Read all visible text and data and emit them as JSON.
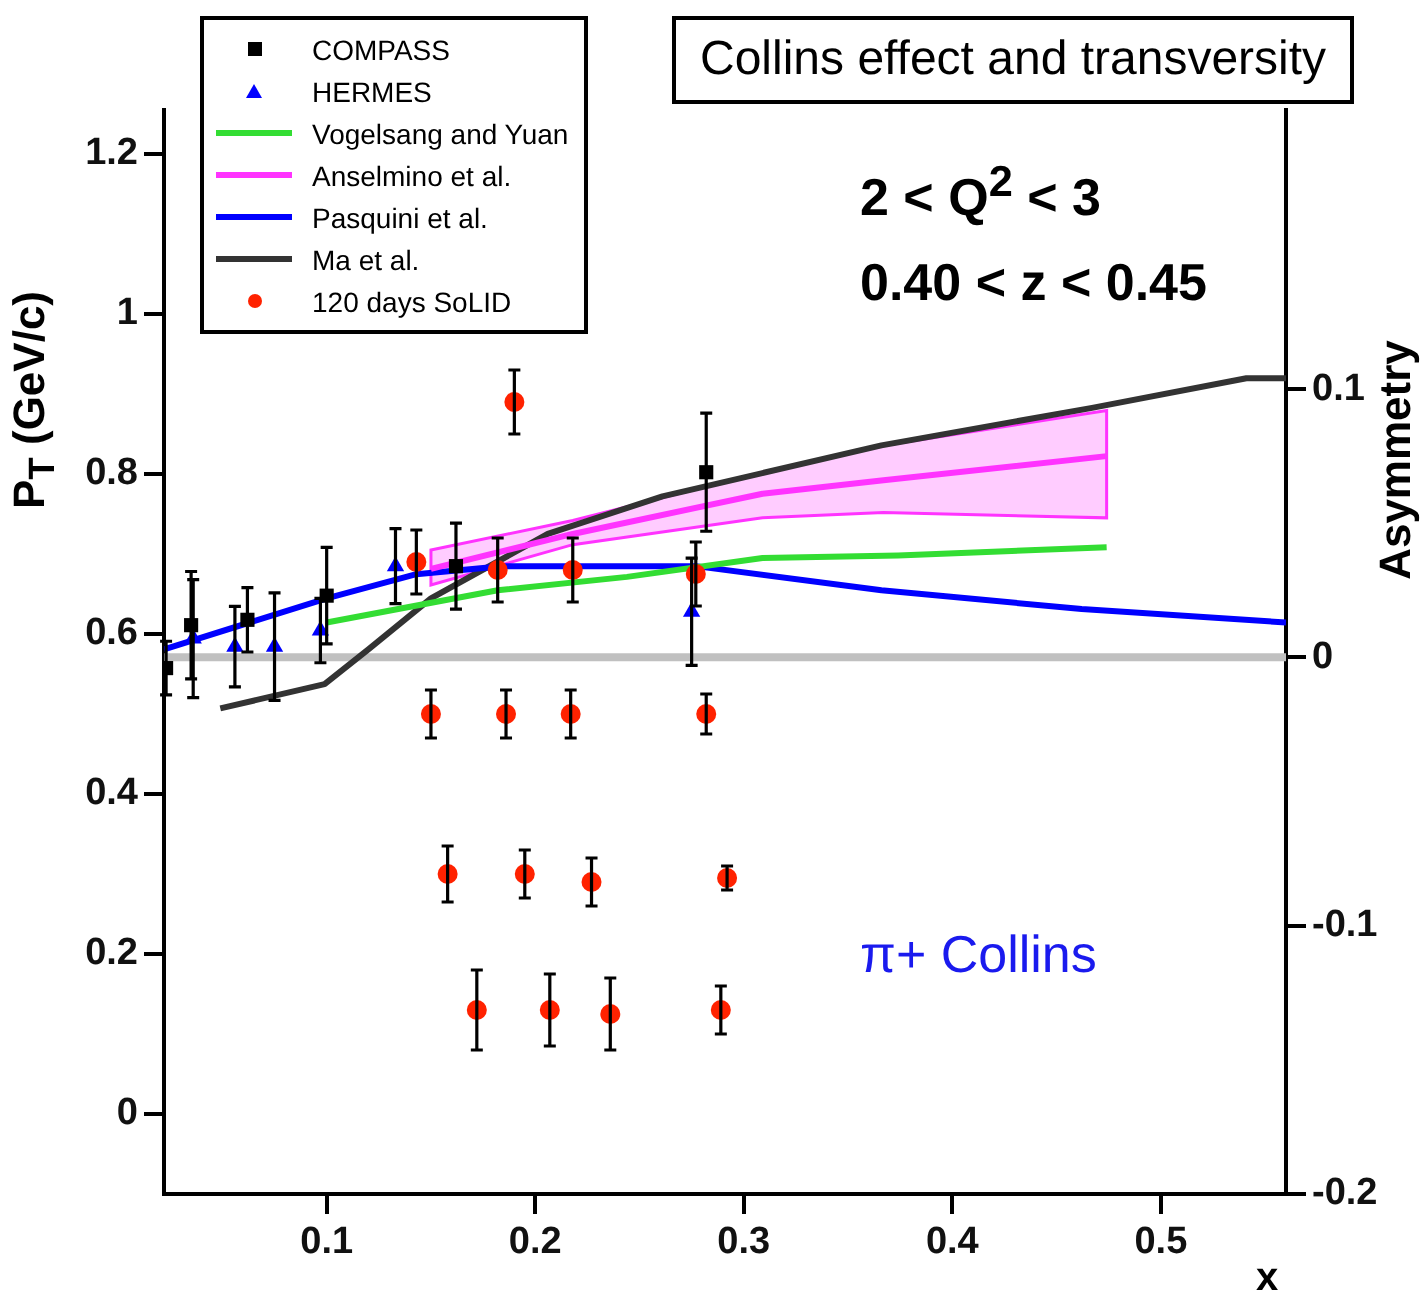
{
  "chart_data": {
    "type": "scatter",
    "title": "Collins effect and transversity",
    "xlabel": "x",
    "ylabel": "P$_{T}$ (GeV/c)",
    "y2label": "Asymmetry",
    "annotations": [
      "2 < Q$^{2}$ < 3",
      "0.40 < z < 0.45",
      "π+ Collins"
    ],
    "xlim": [
      0.022,
      0.56
    ],
    "xticks": [
      0.1,
      0.2,
      0.3,
      0.4,
      0.5
    ],
    "ylim": [
      -0.1,
      1.255
    ],
    "yticks": [
      0,
      0.2,
      0.4,
      0.6,
      0.8,
      1,
      1.2
    ],
    "y2lim": [
      -0.2,
      0.204
    ],
    "y2ticks": [
      -0.2,
      -0.1,
      0,
      0.1
    ],
    "grid": false,
    "legend": "top left",
    "ref_lines": [
      {
        "axis": "y2",
        "value": 0,
        "color": "#c0c0c0"
      }
    ],
    "series": [
      {
        "name": "COMPASS",
        "type": "scatter",
        "axis": "y2",
        "marker": "square",
        "color": "#000000",
        "x": [
          0.023,
          0.035,
          0.062,
          0.1,
          0.162,
          0.282
        ],
        "values": [
          -0.004,
          0.012,
          0.014,
          0.023,
          0.034,
          0.069
        ],
        "errors": [
          0.01,
          0.02,
          0.012,
          0.018,
          0.016,
          0.022
        ]
      },
      {
        "name": "HERMES",
        "type": "scatter",
        "axis": "y2",
        "marker": "triangle",
        "color": "#0000ff",
        "x": [
          0.036,
          0.056,
          0.075,
          0.097,
          0.133,
          0.275
        ],
        "values": [
          0.007,
          0.004,
          0.004,
          0.01,
          0.034,
          0.017
        ],
        "errors": [
          0.022,
          0.015,
          0.02,
          0.012,
          0.014,
          0.02
        ]
      },
      {
        "name": "Vogelsang and Yuan",
        "type": "line",
        "axis": "y2",
        "color": "#33dd33",
        "x": [
          0.1,
          0.182,
          0.244,
          0.309,
          0.374,
          0.474
        ],
        "values": [
          0.013,
          0.025,
          0.03,
          0.037,
          0.038,
          0.041
        ]
      },
      {
        "name": "Anselmino et al.",
        "type": "line",
        "axis": "y2",
        "color": "#ff33ff",
        "x": [
          0.15,
          0.218,
          0.309,
          0.367,
          0.474
        ],
        "values": [
          0.033,
          0.046,
          0.061,
          0.066,
          0.075
        ],
        "lower": [
          0.027,
          0.042,
          0.052,
          0.054,
          0.052
        ],
        "upper": [
          0.04,
          0.051,
          0.069,
          0.079,
          0.092
        ]
      },
      {
        "name": "Pasquini et al.",
        "type": "line",
        "axis": "y2",
        "color": "#0000ff",
        "x": [
          0.022,
          0.1,
          0.143,
          0.184,
          0.232,
          0.277,
          0.366,
          0.462,
          0.56
        ],
        "values": [
          0.003,
          0.022,
          0.031,
          0.034,
          0.034,
          0.034,
          0.025,
          0.018,
          0.013
        ]
      },
      {
        "name": "Ma et al.",
        "type": "line",
        "axis": "y2",
        "color": "#333333",
        "x": [
          0.049,
          0.099,
          0.12,
          0.15,
          0.206,
          0.261,
          0.366,
          0.467,
          0.541,
          0.56
        ],
        "values": [
          -0.019,
          -0.01,
          0.003,
          0.022,
          0.046,
          0.06,
          0.079,
          0.093,
          0.104,
          0.104
        ]
      },
      {
        "name": "120 days SoLID",
        "type": "scatter",
        "axis": "y",
        "marker": "circle",
        "color": "#ff2200",
        "x": [
          0.19,
          0.143,
          0.182,
          0.218,
          0.277,
          0.15,
          0.186,
          0.217,
          0.282,
          0.158,
          0.195,
          0.227,
          0.292,
          0.172,
          0.207,
          0.236,
          0.289
        ],
        "values": [
          0.89,
          0.69,
          0.68,
          0.68,
          0.675,
          0.5,
          0.5,
          0.5,
          0.5,
          0.3,
          0.3,
          0.29,
          0.295,
          0.13,
          0.13,
          0.125,
          0.13
        ],
        "errors": [
          0.04,
          0.04,
          0.04,
          0.04,
          0.04,
          0.03,
          0.03,
          0.03,
          0.025,
          0.035,
          0.03,
          0.03,
          0.015,
          0.05,
          0.045,
          0.045,
          0.03
        ]
      }
    ]
  }
}
